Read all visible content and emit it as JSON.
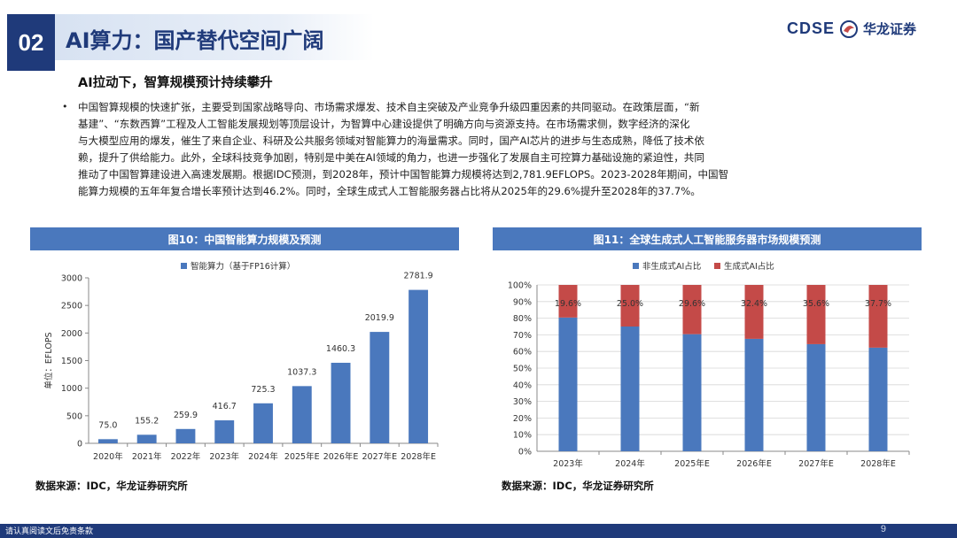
{
  "header": {
    "section_number": "02",
    "title": "AI算力：国产替代空间广阔",
    "logo_en": "CDSE",
    "logo_cn": "华龙证券"
  },
  "subtitle": "AI拉动下，智算规模预计持续攀升",
  "body": {
    "bullet": "•",
    "paragraph_lines": [
      "中国智算规模的快速扩张，主要受到国家战略导向、市场需求爆发、技术自主突破及产业竞争升级四重因素的共同驱动。在政策层面，“新",
      "基建”、“东数西算”工程及人工智能发展规划等顶层设计，为智算中心建设提供了明确方向与资源支持。在市场需求侧，数字经济的深化",
      "与大模型应用的爆发，催生了来自企业、科研及公共服务领域对智能算力的海量需求。同时，国产AI芯片的进步与生态成熟，降低了技术依",
      "赖，提升了供给能力。此外，全球科技竞争加剧，特别是中美在AI领域的角力，也进一步强化了发展自主可控算力基础设施的紧迫性，共同",
      "推动了中国智算建设进入高速发展期。根据IDC预测，到2028年，预计中国智能算力规模将达到2,781.9EFLOPS。2023-2028年期间，中国智",
      "能算力规模的五年年复合增长率预计达到46.2%。同时，全球生成式人工智能服务器占比将从2025年的29.6%提升至2028年的37.7%。"
    ]
  },
  "chart_data": [
    {
      "type": "bar",
      "title": "图10：中国智能算力规模及预测",
      "legend": "智能算力（基于FP16计算）",
      "legend_position": "top",
      "ylabel": "单位：EFLOPS",
      "xlabel": "",
      "categories": [
        "2020年",
        "2021年",
        "2022年",
        "2023年",
        "2024年",
        "2025年E",
        "2026年E",
        "2027年E",
        "2028年E"
      ],
      "values": [
        75.0,
        155.2,
        259.9,
        416.7,
        725.3,
        1037.3,
        1460.3,
        2019.9,
        2781.9
      ],
      "value_labels": [
        "75.0",
        "155.2",
        "259.9",
        "416.7",
        "725.3",
        "1037.3",
        "1460.3",
        "2019.9",
        "2781.9"
      ],
      "ylim": [
        0,
        3000
      ],
      "yticks": [
        0,
        500,
        1000,
        1500,
        2000,
        2500,
        3000
      ],
      "color": "#4a78bd",
      "grid": false,
      "source": "数据来源：IDC，华龙证券研究所"
    },
    {
      "type": "bar",
      "stacked": true,
      "title": "图11：全球生成式人工智能服务器市场规模预测",
      "legend_position": "top",
      "categories": [
        "2023年",
        "2024年",
        "2025年E",
        "2026年E",
        "2027年E",
        "2028年E"
      ],
      "series": [
        {
          "name": "非生成式AI占比",
          "values": [
            80.4,
            75.0,
            70.4,
            67.6,
            64.4,
            62.3
          ],
          "color": "#4a78bd"
        },
        {
          "name": "生成式AI占比",
          "values": [
            19.6,
            25.0,
            29.6,
            32.4,
            35.6,
            37.7
          ],
          "color": "#c44a48"
        }
      ],
      "value_labels": [
        "19.6%",
        "25.0%",
        "29.6%",
        "32.4%",
        "35.6%",
        "37.7%"
      ],
      "ylim": [
        0,
        100
      ],
      "yticks": [
        "0%",
        "10%",
        "20%",
        "30%",
        "40%",
        "50%",
        "60%",
        "70%",
        "80%",
        "90%",
        "100%"
      ],
      "grid": true,
      "source": "数据来源：IDC，华龙证券研究所"
    }
  ],
  "footer": {
    "disclaimer": "请认真阅读文后免责条款",
    "page_number": "9"
  }
}
